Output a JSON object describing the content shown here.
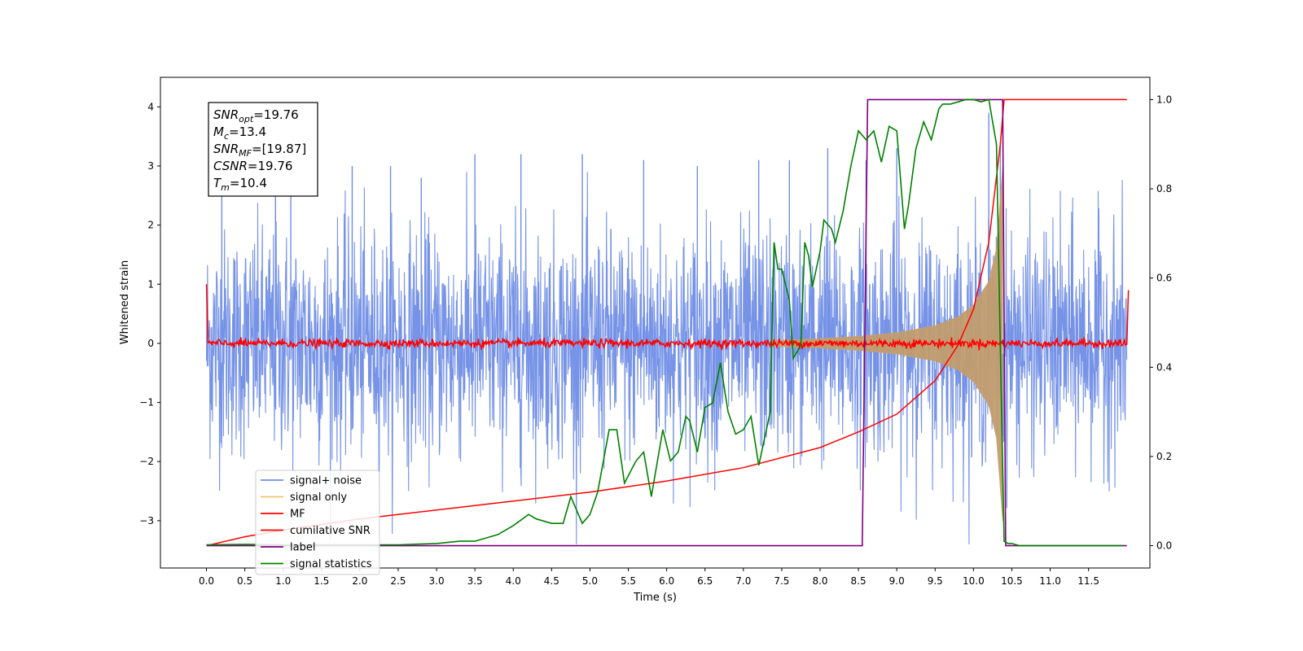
{
  "chart_data": {
    "type": "line",
    "title": "",
    "xlabel": "Time (s)",
    "ylabel": "Whitened strain",
    "xlim": [
      -0.6,
      12.3
    ],
    "ylim_left": [
      -3.8,
      4.5
    ],
    "ylim_right": [
      -0.05,
      1.05
    ],
    "x_ticks": [
      0.0,
      0.5,
      1.0,
      1.5,
      2.0,
      2.5,
      3.0,
      3.5,
      4.0,
      4.5,
      5.0,
      5.5,
      6.0,
      6.5,
      7.0,
      7.5,
      8.0,
      8.5,
      9.0,
      9.5,
      10.0,
      10.5,
      11.0,
      11.5
    ],
    "x_tick_labels": [
      "0.0",
      "0.5",
      "1.0",
      "1.5",
      "2.0",
      "2.5",
      "3.0",
      "3.5",
      "4.0",
      "4.5",
      "5.0",
      "5.5",
      "6.0",
      "6.5",
      "7.0",
      "7.5",
      "8.0",
      "8.5",
      "9.0",
      "9.5",
      "10.0",
      "10.5",
      "11.0",
      "11.5"
    ],
    "y_left_ticks": [
      -3,
      -2,
      -1,
      0,
      1,
      2,
      3,
      4
    ],
    "y_left_tick_labels": [
      "−3",
      "−2",
      "−1",
      "0",
      "1",
      "2",
      "3",
      "4"
    ],
    "y_right_ticks": [
      0.0,
      0.2,
      0.4,
      0.6,
      0.8,
      1.0
    ],
    "y_right_tick_labels": [
      "0.0",
      "0.2",
      "0.4",
      "0.6",
      "0.8",
      "1.0"
    ],
    "grid": false,
    "legend": {
      "placement": "lower-left",
      "entries": [
        {
          "label": "signal+ noise",
          "color": "#6f8de6"
        },
        {
          "label": "signal only",
          "color": "#f5c16b"
        },
        {
          "label": "MF",
          "color": "#ff0000"
        },
        {
          "label": "cumilative SNR",
          "color": "#ff0000"
        },
        {
          "label": "label",
          "color": "#800080"
        },
        {
          "label": "signal statistics",
          "color": "#008000"
        }
      ]
    },
    "annotation_box": {
      "lines": [
        {
          "symbol": "SNR",
          "sub": "opt",
          "value": "=19.76"
        },
        {
          "symbol": "M",
          "sub": "c",
          "value": "=13.4"
        },
        {
          "symbol": "SNR",
          "sub": "MF",
          "value": "=[19.87]"
        },
        {
          "symbol": "CSNR",
          "sub": "",
          "value": "=19.76"
        },
        {
          "symbol": "T",
          "sub": "m",
          "value": "=10.4"
        }
      ]
    },
    "series": [
      {
        "name": "signal+ noise",
        "axis": "left",
        "color": "#6f8de6",
        "description_range": {
          "x": [
            0.0,
            12.0
          ],
          "amplitude": 2.5
        },
        "spike_x": [
          0.2,
          0.9,
          1.1,
          1.9,
          2.4,
          2.8,
          3.5,
          4.1,
          4.9,
          5.7,
          6.4,
          7.2,
          7.6,
          8.1,
          8.6,
          9.0,
          10.2,
          10.35
        ],
        "spike_y": [
          2.7,
          3.1,
          2.8,
          3.0,
          3.0,
          2.8,
          3.2,
          3.2,
          3.2,
          3.1,
          3.0,
          3.1,
          3.1,
          3.3,
          3.1,
          3.3,
          3.9,
          3.4
        ]
      },
      {
        "name": "signal only",
        "axis": "left",
        "color": "#f5c16b",
        "envelope_x": [
          7.4,
          8.0,
          8.5,
          9.0,
          9.5,
          9.8,
          10.0,
          10.2,
          10.3,
          10.38
        ],
        "envelope_y": [
          0.05,
          0.08,
          0.12,
          0.18,
          0.3,
          0.45,
          0.65,
          1.05,
          1.6,
          3.0
        ]
      },
      {
        "name": "MF",
        "axis": "left",
        "color": "#ff0000",
        "x": [
          0.0,
          0.02,
          12.0,
          12.02
        ],
        "y": [
          1.0,
          0.0,
          0.0,
          0.9
        ]
      },
      {
        "name": "cumilative SNR",
        "axis": "right",
        "color": "#ff0000",
        "x": [
          0.0,
          0.5,
          1.0,
          2.0,
          3.0,
          4.0,
          5.0,
          6.0,
          7.0,
          8.0,
          8.5,
          9.0,
          9.5,
          9.8,
          10.0,
          10.2,
          10.35,
          10.4,
          12.0
        ],
        "y": [
          0.0,
          0.02,
          0.035,
          0.06,
          0.08,
          0.1,
          0.12,
          0.145,
          0.175,
          0.22,
          0.255,
          0.295,
          0.37,
          0.45,
          0.53,
          0.68,
          0.9,
          1.0,
          1.0
        ]
      },
      {
        "name": "label",
        "axis": "right",
        "color": "#800080",
        "x": [
          0.0,
          8.55,
          8.62,
          10.38,
          10.42,
          12.0
        ],
        "y": [
          0.0,
          0.0,
          1.0,
          1.0,
          0.0,
          0.0
        ]
      },
      {
        "name": "signal statistics",
        "axis": "right",
        "color": "#008000",
        "x": [
          0.0,
          0.5,
          1.0,
          1.5,
          2.0,
          2.5,
          3.0,
          3.3,
          3.5,
          3.7,
          3.8,
          3.9,
          4.0,
          4.2,
          4.3,
          4.5,
          4.65,
          4.75,
          4.9,
          5.0,
          5.1,
          5.25,
          5.35,
          5.45,
          5.6,
          5.7,
          5.8,
          5.95,
          6.05,
          6.15,
          6.25,
          6.3,
          6.4,
          6.5,
          6.6,
          6.7,
          6.8,
          6.9,
          7.0,
          7.1,
          7.2,
          7.3,
          7.35,
          7.4,
          7.45,
          7.5,
          7.6,
          7.65,
          7.75,
          7.8,
          7.85,
          7.9,
          8.0,
          8.05,
          8.15,
          8.2,
          8.3,
          8.4,
          8.5,
          8.6,
          8.7,
          8.8,
          8.9,
          9.0,
          9.1,
          9.15,
          9.25,
          9.35,
          9.45,
          9.55,
          9.6,
          9.7,
          9.8,
          9.9,
          10.0,
          10.1,
          10.2,
          10.3,
          10.35,
          10.4,
          10.45,
          10.5,
          10.6,
          11.0,
          11.5,
          11.95
        ],
        "y": [
          0.002,
          0.003,
          0.002,
          0.002,
          0.002,
          0.002,
          0.005,
          0.01,
          0.01,
          0.02,
          0.025,
          0.035,
          0.045,
          0.07,
          0.06,
          0.05,
          0.05,
          0.11,
          0.05,
          0.07,
          0.12,
          0.26,
          0.26,
          0.14,
          0.19,
          0.21,
          0.11,
          0.26,
          0.19,
          0.21,
          0.29,
          0.28,
          0.21,
          0.31,
          0.32,
          0.41,
          0.3,
          0.25,
          0.26,
          0.29,
          0.18,
          0.26,
          0.3,
          0.68,
          0.62,
          0.62,
          0.55,
          0.42,
          0.45,
          0.68,
          0.65,
          0.58,
          0.66,
          0.73,
          0.71,
          0.68,
          0.75,
          0.85,
          0.93,
          0.91,
          0.93,
          0.86,
          0.94,
          0.93,
          0.71,
          0.76,
          0.89,
          0.95,
          0.91,
          0.98,
          0.99,
          0.99,
          0.995,
          1.0,
          1.0,
          0.995,
          1.0,
          0.9,
          0.45,
          0.01,
          0.005,
          0.005,
          0.0,
          0.0,
          0.0,
          0.0
        ]
      }
    ]
  }
}
